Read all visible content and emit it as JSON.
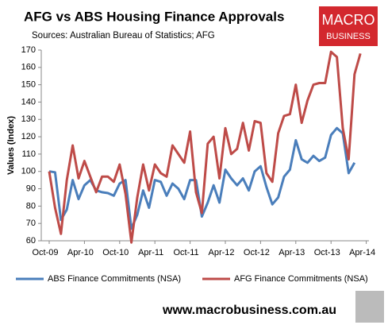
{
  "chart_data": {
    "type": "line",
    "title": "AFG vs ABS Housing Finance Approvals",
    "subtitle": "Sources: Australian Bureau of Statistics; AFG",
    "logo_text": "MACRO",
    "logo_subtext": "BUSINESS",
    "footer": "www.macrobusiness.com.au",
    "y_label": "Values (Index)",
    "categories": [
      "Oct-09",
      null,
      null,
      null,
      null,
      null,
      "Apr-10",
      null,
      null,
      null,
      null,
      null,
      "Oct-10",
      null,
      null,
      null,
      null,
      null,
      "Apr-11",
      null,
      null,
      null,
      null,
      null,
      "Oct-11",
      null,
      null,
      null,
      null,
      null,
      "Apr-12",
      null,
      null,
      null,
      null,
      null,
      "Oct-12",
      null,
      null,
      null,
      null,
      null,
      "Apr-13",
      null,
      null,
      null,
      null,
      null,
      "Oct-13",
      null,
      null,
      null,
      null,
      null,
      "Apr-14"
    ],
    "series": [
      {
        "name": "ABS Finance Commitments (NSA)",
        "color": "#4a7ebb",
        "values": [
          100,
          99.5,
          72,
          78,
          95,
          84,
          92,
          95,
          89,
          88,
          87.5,
          86,
          93,
          95,
          67,
          75,
          89,
          79,
          95,
          94,
          86,
          93,
          90,
          84,
          95,
          95,
          74,
          82,
          92,
          82,
          101,
          96,
          92,
          96,
          89,
          100,
          103,
          91,
          81,
          85,
          97,
          101,
          118,
          107,
          105,
          109,
          106,
          108,
          121,
          125,
          122,
          99,
          105,
          null,
          null
        ]
      },
      {
        "name": "AFG Finance Commitments (NSA)",
        "color": "#be4b48",
        "values": [
          100,
          79,
          64,
          95,
          115,
          96,
          106,
          97,
          88,
          97,
          97,
          94,
          104,
          87,
          59,
          85,
          104,
          89,
          104,
          99,
          97,
          115,
          110,
          105,
          123,
          88,
          76,
          116,
          120,
          96,
          125,
          110,
          113,
          128,
          112,
          129,
          128,
          99,
          94,
          122,
          132,
          133,
          150,
          128,
          141,
          150,
          151,
          151,
          169,
          166,
          125,
          107,
          156,
          168,
          null
        ]
      }
    ],
    "ylim": [
      60,
      170
    ],
    "yticks": [
      60,
      70,
      80,
      90,
      100,
      110,
      120,
      130,
      140,
      150,
      160,
      170
    ],
    "grid": false,
    "legend": "bottom"
  }
}
